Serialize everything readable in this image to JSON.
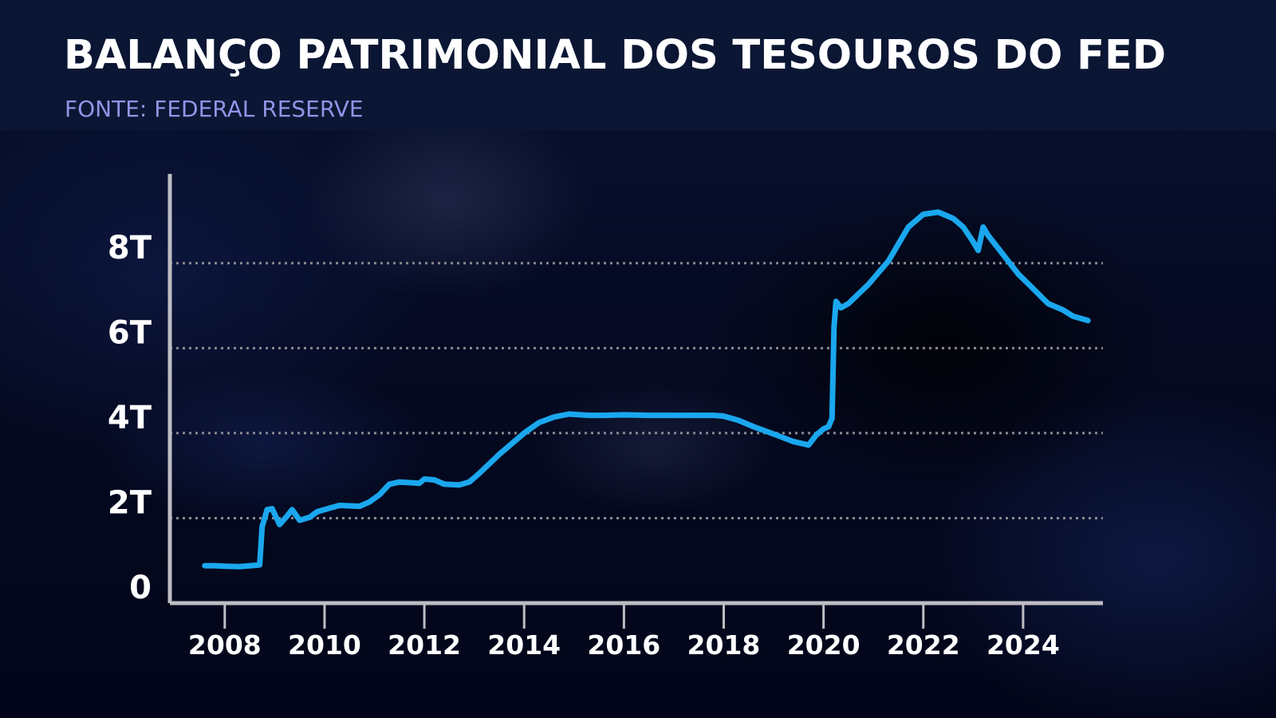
{
  "header": {
    "title": "BALANÇO PATRIMONIAL DOS TESOUROS DO FED",
    "source": "FONTE: FEDERAL RESERVE"
  },
  "colors": {
    "line": "#1aa7ee",
    "grid": "#8a8a92",
    "axis": "#bdbdc3",
    "header_bg": "#0b1634",
    "subtitle": "#8f95e6"
  },
  "chart_data": {
    "type": "line",
    "title": "BALANÇO PATRIMONIAL DOS TESOUROS DO FED",
    "subtitle": "FONTE: FEDERAL RESERVE",
    "xlabel": "",
    "ylabel": "",
    "xlim": [
      2006.9,
      2025.6
    ],
    "ylim": [
      0,
      10.1
    ],
    "grid": "horizontal dotted lines at 2, 4, 6, 8",
    "legend": "none",
    "x_ticks": [
      2008,
      2010,
      2012,
      2014,
      2016,
      2018,
      2020,
      2022,
      2024
    ],
    "x_tick_labels": [
      "2008",
      "2010",
      "2012",
      "2014",
      "2016",
      "2018",
      "2020",
      "2022",
      "2024"
    ],
    "y_ticks": [
      0,
      2,
      4,
      6,
      8
    ],
    "y_tick_labels": [
      "0",
      "2T",
      "4T",
      "6T",
      "8T"
    ],
    "series": [
      {
        "x": [
          2007.6,
          2007.8,
          2008.0,
          2008.3,
          2008.7,
          2008.75,
          2008.85,
          2008.95,
          2009.1,
          2009.25,
          2009.35,
          2009.5,
          2009.7,
          2009.85,
          2010.0,
          2010.3,
          2010.7,
          2010.9,
          2011.1,
          2011.3,
          2011.5,
          2011.9,
          2012.0,
          2012.2,
          2012.4,
          2012.7,
          2012.9,
          2013.1,
          2013.5,
          2014.0,
          2014.3,
          2014.6,
          2014.9,
          2015.3,
          2015.6,
          2016.0,
          2016.5,
          2017.0,
          2017.4,
          2017.8,
          2018.0,
          2018.3,
          2018.6,
          2019.0,
          2019.4,
          2019.7,
          2019.85,
          2020.0,
          2020.1,
          2020.17,
          2020.21,
          2020.25,
          2020.35,
          2020.5,
          2020.9,
          2021.3,
          2021.7,
          2022.0,
          2022.3,
          2022.6,
          2022.8,
          2023.0,
          2023.1,
          2023.2,
          2023.3,
          2023.6,
          2023.9,
          2024.2,
          2024.5,
          2024.8,
          2025.0,
          2025.3
        ],
        "y": [
          0.88,
          0.88,
          0.87,
          0.86,
          0.9,
          1.8,
          2.2,
          2.22,
          1.85,
          2.05,
          2.2,
          1.95,
          2.02,
          2.15,
          2.2,
          2.3,
          2.28,
          2.38,
          2.55,
          2.8,
          2.85,
          2.82,
          2.92,
          2.9,
          2.8,
          2.78,
          2.85,
          3.05,
          3.5,
          4.0,
          4.25,
          4.38,
          4.45,
          4.42,
          4.42,
          4.43,
          4.42,
          4.42,
          4.42,
          4.42,
          4.4,
          4.3,
          4.15,
          3.98,
          3.8,
          3.72,
          3.95,
          4.1,
          4.15,
          4.35,
          6.5,
          7.1,
          6.95,
          7.05,
          7.5,
          8.05,
          8.85,
          9.15,
          9.2,
          9.05,
          8.85,
          8.5,
          8.3,
          8.85,
          8.65,
          8.2,
          7.75,
          7.4,
          7.05,
          6.9,
          6.75,
          6.65
        ]
      }
    ]
  }
}
